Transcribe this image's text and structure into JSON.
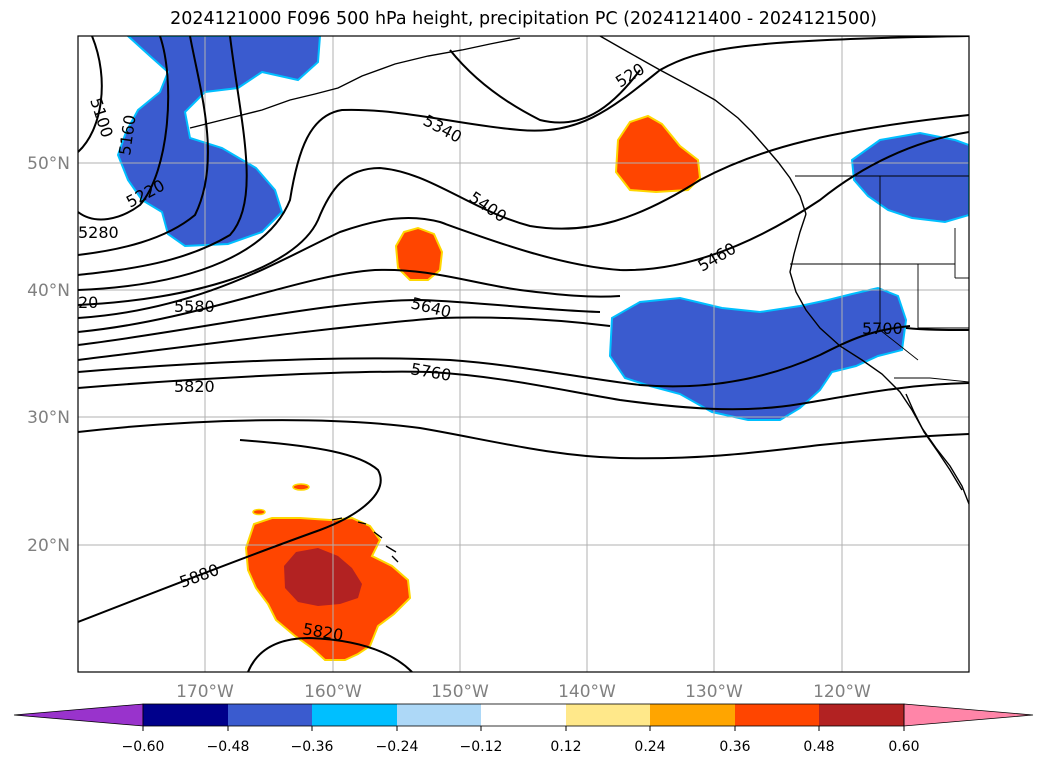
{
  "title": "2024121000 F096 500 hPa height, precipitation PC (2024121400 - 2024121500)",
  "map": {
    "lat_labels": [
      "50°N",
      "40°N",
      "30°N",
      "20°N"
    ],
    "lon_labels": [
      "170°W",
      "160°W",
      "150°W",
      "140°W",
      "130°W",
      "120°W"
    ],
    "contour_labels": [
      "5100",
      "5160",
      "5220",
      "5280",
      "20",
      "5580",
      "5340",
      "5400",
      "5640",
      "5760",
      "5820",
      "5460",
      "520",
      "5700",
      "5880",
      "5820"
    ],
    "colors": {
      "contour": "#000000",
      "grid": "#b0b0b0",
      "coast": "#000000",
      "negative_precip": "#3a5bcf",
      "negative_precip_edge": "#00bfff",
      "positive_precip": "#ff4500",
      "positive_precip_edge": "#ffd700",
      "strong_positive_precip": "#b22222"
    }
  },
  "colorbar": {
    "tick_labels": [
      "−0.60",
      "−0.48",
      "−0.36",
      "−0.24",
      "−0.12",
      "0.12",
      "0.24",
      "0.36",
      "0.48",
      "0.60"
    ],
    "bins": [
      {
        "color": "#9933cc"
      },
      {
        "color": "#00008b"
      },
      {
        "color": "#3a5bcf"
      },
      {
        "color": "#00bfff"
      },
      {
        "color": "#add8f7"
      },
      {
        "color": "#ffffff"
      },
      {
        "color": "#ffe88a"
      },
      {
        "color": "#ffa500"
      },
      {
        "color": "#ff4500"
      },
      {
        "color": "#b22222"
      },
      {
        "color": "#ff85a8"
      }
    ]
  }
}
